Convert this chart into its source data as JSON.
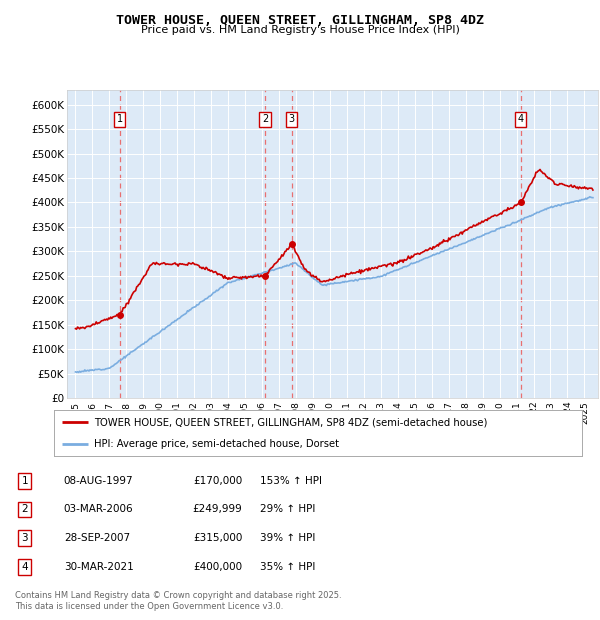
{
  "title": "TOWER HOUSE, QUEEN STREET, GILLINGHAM, SP8 4DZ",
  "subtitle": "Price paid vs. HM Land Registry's House Price Index (HPI)",
  "legend_line1": "TOWER HOUSE, QUEEN STREET, GILLINGHAM, SP8 4DZ (semi-detached house)",
  "legend_line2": "HPI: Average price, semi-detached house, Dorset",
  "footer": "Contains HM Land Registry data © Crown copyright and database right 2025.\nThis data is licensed under the Open Government Licence v3.0.",
  "transactions": [
    {
      "num": 1,
      "date": "08-AUG-1997",
      "price": "170,000",
      "hpi_pct": "153% ↑ HPI",
      "year": 1997.6,
      "price_val": 170000
    },
    {
      "num": 2,
      "date": "03-MAR-2006",
      "price": "249,999",
      "hpi_pct": "29% ↑ HPI",
      "year": 2006.17,
      "price_val": 249999
    },
    {
      "num": 3,
      "date": "28-SEP-2007",
      "price": "315,000",
      "hpi_pct": "39% ↑ HPI",
      "year": 2007.75,
      "price_val": 315000
    },
    {
      "num": 4,
      "date": "30-MAR-2021",
      "price": "400,000",
      "hpi_pct": "35% ↑ HPI",
      "year": 2021.25,
      "price_val": 400000
    }
  ],
  "red_line_color": "#cc0000",
  "blue_line_color": "#7aade0",
  "dashed_vline_color": "#e87070",
  "plot_bg_color": "#ddeaf7",
  "ylim": [
    0,
    630000
  ],
  "xlim_start": 1994.5,
  "xlim_end": 2025.8,
  "yticks": [
    0,
    50000,
    100000,
    150000,
    200000,
    250000,
    300000,
    350000,
    400000,
    450000,
    500000,
    550000,
    600000
  ],
  "ytick_labels": [
    "£0",
    "£50K",
    "£100K",
    "£150K",
    "£200K",
    "£250K",
    "£300K",
    "£350K",
    "£400K",
    "£450K",
    "£500K",
    "£550K",
    "£600K"
  ],
  "xticks": [
    1995,
    1996,
    1997,
    1998,
    1999,
    2000,
    2001,
    2002,
    2003,
    2004,
    2005,
    2006,
    2007,
    2008,
    2009,
    2010,
    2011,
    2012,
    2013,
    2014,
    2015,
    2016,
    2017,
    2018,
    2019,
    2020,
    2021,
    2022,
    2023,
    2024,
    2025
  ]
}
